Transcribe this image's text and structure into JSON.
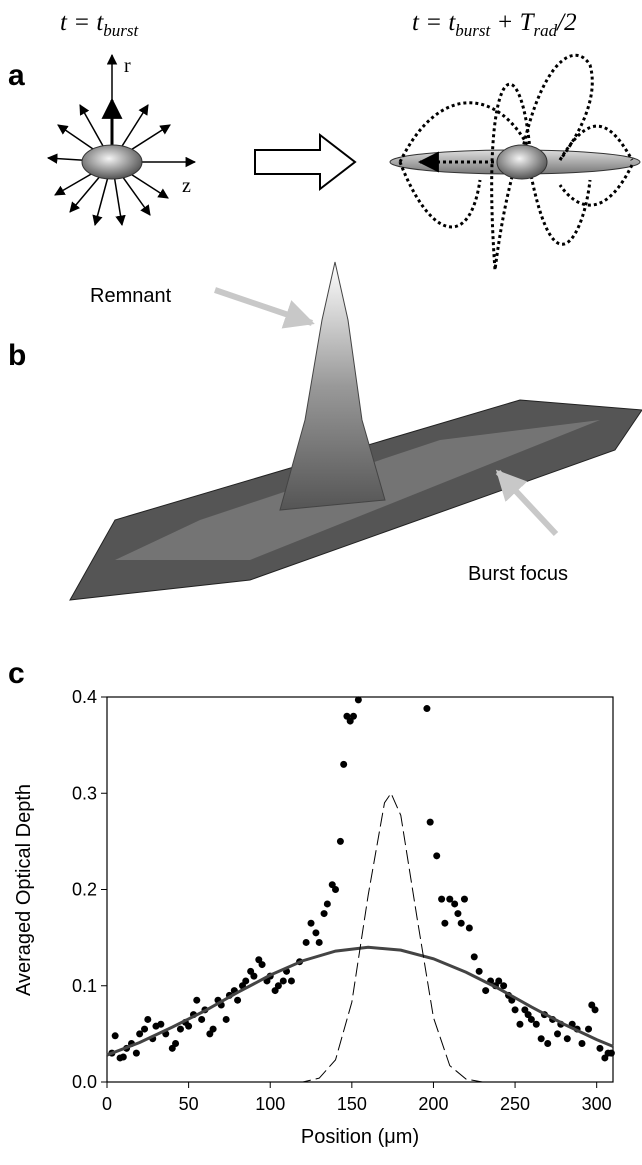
{
  "panels": {
    "a": {
      "letter": "a",
      "left_label": [
        "t = t",
        "burst"
      ],
      "right_label": [
        "t = t",
        "burst",
        " + T",
        "rad",
        "/2"
      ],
      "axis_r": "r",
      "axis_z": "z"
    },
    "b": {
      "letter": "b",
      "remnant": "Remnant",
      "burst_focus": "Burst focus"
    },
    "c": {
      "letter": "c"
    }
  },
  "chart_data": {
    "type": "scatter",
    "xlabel": "Position (μm)",
    "ylabel": "Averaged Optical Depth",
    "xlim": [
      0,
      310
    ],
    "ylim": [
      0,
      0.4
    ],
    "xticks": [
      0,
      50,
      100,
      150,
      200,
      250,
      300
    ],
    "yticks": [
      {
        "value": 0,
        "label": "0.0"
      },
      0.1,
      0.2,
      0.3,
      0.4
    ],
    "series": [
      {
        "type": "scatter",
        "color": "#000000",
        "x": [
          3,
          5,
          8,
          10,
          12,
          15,
          18,
          20,
          23,
          25,
          28,
          30,
          33,
          36,
          40,
          42,
          45,
          48,
          50,
          53,
          55,
          58,
          60,
          63,
          65,
          68,
          70,
          73,
          75,
          78,
          80,
          83,
          85,
          88,
          90,
          93,
          95,
          98,
          100,
          103,
          105,
          108,
          110,
          113,
          118,
          122,
          125,
          128,
          130,
          133,
          135,
          138,
          140,
          143,
          145,
          147,
          149,
          151,
          154,
          196,
          198,
          202,
          205,
          207,
          210,
          213,
          215,
          217,
          219,
          222,
          225,
          228,
          232,
          235,
          238,
          240,
          243,
          246,
          248,
          250,
          253,
          256,
          258,
          260,
          263,
          266,
          268,
          270,
          273,
          276,
          278,
          282,
          285,
          288,
          291,
          295,
          297,
          299,
          302,
          305,
          307,
          309
        ],
        "values": [
          0.03,
          0.048,
          0.025,
          0.026,
          0.035,
          0.04,
          0.03,
          0.05,
          0.055,
          0.065,
          0.045,
          0.058,
          0.06,
          0.05,
          0.035,
          0.04,
          0.055,
          0.062,
          0.058,
          0.07,
          0.085,
          0.065,
          0.075,
          0.05,
          0.055,
          0.085,
          0.08,
          0.065,
          0.09,
          0.095,
          0.085,
          0.1,
          0.105,
          0.115,
          0.11,
          0.127,
          0.122,
          0.105,
          0.11,
          0.095,
          0.1,
          0.105,
          0.115,
          0.105,
          0.125,
          0.145,
          0.165,
          0.155,
          0.145,
          0.175,
          0.185,
          0.205,
          0.2,
          0.25,
          0.33,
          0.38,
          0.375,
          0.38,
          0.397,
          0.388,
          0.27,
          0.235,
          0.19,
          0.165,
          0.19,
          0.185,
          0.175,
          0.165,
          0.19,
          0.16,
          0.13,
          0.115,
          0.095,
          0.105,
          0.1,
          0.105,
          0.1,
          0.09,
          0.085,
          0.075,
          0.06,
          0.075,
          0.07,
          0.065,
          0.06,
          0.045,
          0.07,
          0.04,
          0.065,
          0.05,
          0.06,
          0.045,
          0.06,
          0.055,
          0.04,
          0.055,
          0.08,
          0.075,
          0.035,
          0.025,
          0.03,
          0.03
        ]
      },
      {
        "type": "line",
        "style": "solid",
        "color": "#444444",
        "x": [
          0,
          20,
          40,
          60,
          80,
          100,
          120,
          140,
          160,
          180,
          200,
          220,
          240,
          260,
          280,
          300,
          310
        ],
        "values": [
          0.028,
          0.041,
          0.057,
          0.074,
          0.093,
          0.111,
          0.126,
          0.136,
          0.14,
          0.137,
          0.128,
          0.114,
          0.097,
          0.078,
          0.06,
          0.044,
          0.037
        ]
      },
      {
        "type": "line",
        "style": "dashed",
        "color": "#000000",
        "x": [
          0,
          110,
          120,
          130,
          140,
          150,
          160,
          170,
          174,
          180,
          190,
          200,
          210,
          220,
          230,
          310
        ],
        "values": [
          0,
          0,
          0,
          0.004,
          0.023,
          0.083,
          0.194,
          0.29,
          0.3,
          0.277,
          0.17,
          0.067,
          0.017,
          0.003,
          0,
          0
        ]
      }
    ]
  }
}
